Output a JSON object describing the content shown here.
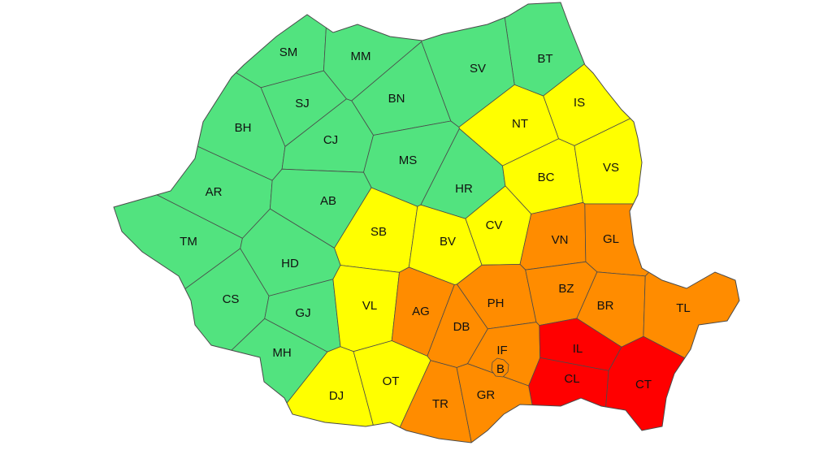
{
  "legend_colors": {
    "green": "#52e37f",
    "yellow": "#ffff00",
    "orange": "#ff8c00",
    "red": "#ff0000"
  },
  "counties": [
    {
      "code": "SM",
      "level": "green"
    },
    {
      "code": "MM",
      "level": "green"
    },
    {
      "code": "BT",
      "level": "green"
    },
    {
      "code": "SV",
      "level": "green"
    },
    {
      "code": "SJ",
      "level": "green"
    },
    {
      "code": "BN",
      "level": "green"
    },
    {
      "code": "IS",
      "level": "yellow"
    },
    {
      "code": "NT",
      "level": "yellow"
    },
    {
      "code": "BH",
      "level": "green"
    },
    {
      "code": "CJ",
      "level": "green"
    },
    {
      "code": "MS",
      "level": "green"
    },
    {
      "code": "HR",
      "level": "green"
    },
    {
      "code": "BC",
      "level": "yellow"
    },
    {
      "code": "VS",
      "level": "yellow"
    },
    {
      "code": "AR",
      "level": "green"
    },
    {
      "code": "AB",
      "level": "green"
    },
    {
      "code": "CV",
      "level": "yellow"
    },
    {
      "code": "SB",
      "level": "yellow"
    },
    {
      "code": "BV",
      "level": "yellow"
    },
    {
      "code": "VN",
      "level": "orange"
    },
    {
      "code": "GL",
      "level": "orange"
    },
    {
      "code": "TM",
      "level": "green"
    },
    {
      "code": "HD",
      "level": "green"
    },
    {
      "code": "CS",
      "level": "green"
    },
    {
      "code": "GJ",
      "level": "green"
    },
    {
      "code": "VL",
      "level": "yellow"
    },
    {
      "code": "AG",
      "level": "orange"
    },
    {
      "code": "PH",
      "level": "orange"
    },
    {
      "code": "BZ",
      "level": "orange"
    },
    {
      "code": "BR",
      "level": "orange"
    },
    {
      "code": "TL",
      "level": "orange"
    },
    {
      "code": "DB",
      "level": "orange"
    },
    {
      "code": "IF",
      "level": "orange"
    },
    {
      "code": "IL",
      "level": "red"
    },
    {
      "code": "MH",
      "level": "green"
    },
    {
      "code": "CL",
      "level": "red"
    },
    {
      "code": "CT",
      "level": "red"
    },
    {
      "code": "DJ",
      "level": "yellow"
    },
    {
      "code": "OT",
      "level": "yellow"
    },
    {
      "code": "TR",
      "level": "orange"
    },
    {
      "code": "GR",
      "level": "orange"
    },
    {
      "code": "B",
      "level": "orange"
    }
  ]
}
